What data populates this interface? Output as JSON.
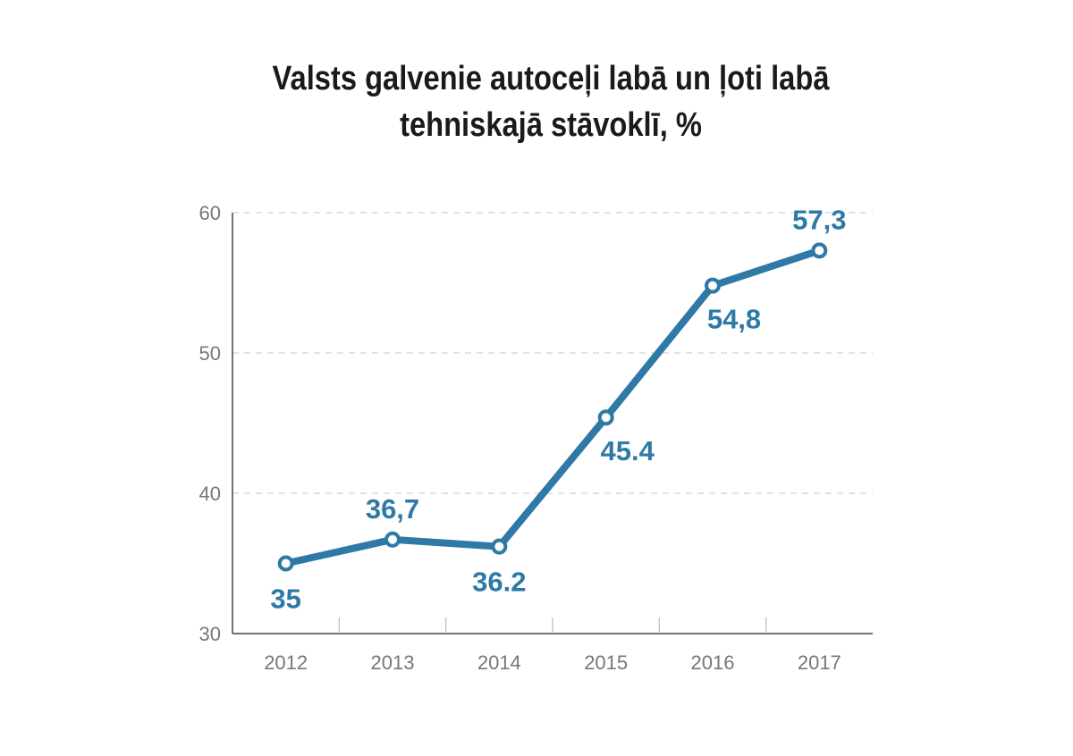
{
  "chart_data": {
    "type": "line",
    "title_line1": "Valsts galvenie autoceļi labā un ļoti labā",
    "title_line2": "tehniskajā stāvoklī, %",
    "categories": [
      "2012",
      "2013",
      "2014",
      "2015",
      "2016",
      "2017"
    ],
    "series": [
      {
        "values": [
          35,
          36.7,
          36.2,
          45.4,
          54.8,
          57.3
        ],
        "labels": [
          "35",
          "36,7",
          "36.2",
          "45.4",
          "54,8",
          "57,3"
        ]
      }
    ],
    "ylim": [
      30,
      60
    ],
    "yticks": [
      "30",
      "40",
      "50",
      "60"
    ],
    "grid": true,
    "line_color": "#2e79a5",
    "label_color": "#2e79a5"
  }
}
